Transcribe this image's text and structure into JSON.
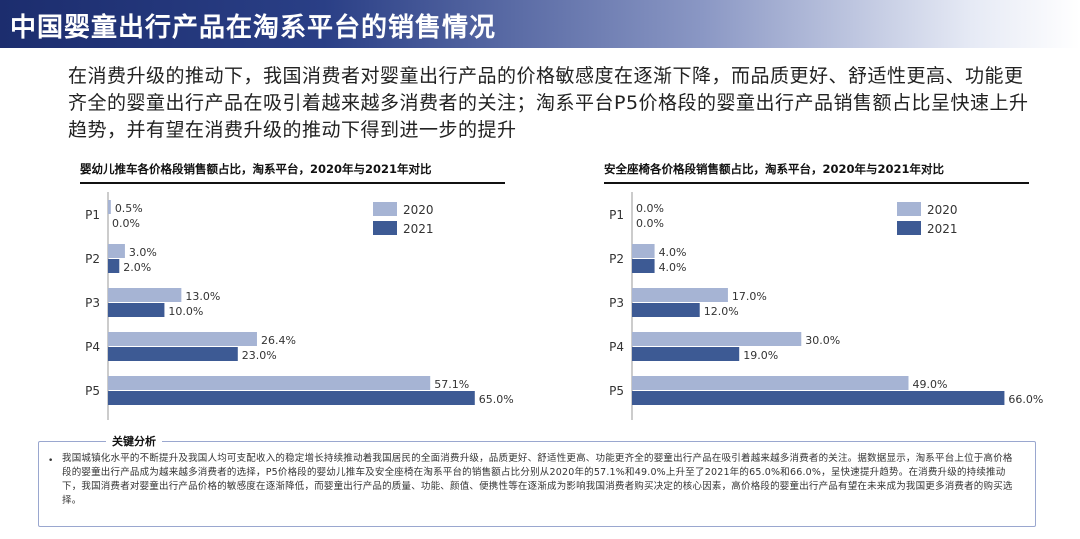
{
  "header": {
    "title": "中国婴童出行产品在淘系平台的销售情况"
  },
  "intro": {
    "text": "在消费升级的推动下，我国消费者对婴童出行产品的价格敏感度在逐渐下降，而品质更好、舒适性更高、功能更齐全的婴童出行产品在吸引着越来越多消费者的关注；淘系平台P5价格段的婴童出行产品销售额占比呈快速上升趋势，并有望在消费升级的推动下得到进一步的提升"
  },
  "colors": {
    "series_2020": "#a6b4d4",
    "series_2021": "#3d5a94",
    "title_bar": "#1c2d6e"
  },
  "chart_data": [
    {
      "type": "bar",
      "orientation": "horizontal",
      "title": "婴幼儿推车各价格段销售额占比，淘系平台，2020年与2021年对比",
      "categories": [
        "P1",
        "P2",
        "P3",
        "P4",
        "P5"
      ],
      "series": [
        {
          "name": "2020",
          "values": [
            0.5,
            3.0,
            13.0,
            26.4,
            57.1
          ],
          "labels": [
            "0.5%",
            "3.0%",
            "13.0%",
            "26.4%",
            "57.1%"
          ]
        },
        {
          "name": "2021",
          "values": [
            0.0,
            2.0,
            10.0,
            23.0,
            65.0
          ],
          "labels": [
            "0.0%",
            "2.0%",
            "10.0%",
            "23.0%",
            "65.0%"
          ]
        }
      ],
      "xlim": [
        0,
        70
      ],
      "legend": "top-right"
    },
    {
      "type": "bar",
      "orientation": "horizontal",
      "title": "安全座椅各价格段销售额占比，淘系平台，2020年与2021年对比",
      "categories": [
        "P1",
        "P2",
        "P3",
        "P4",
        "P5"
      ],
      "series": [
        {
          "name": "2020",
          "values": [
            0.0,
            4.0,
            17.0,
            30.0,
            49.0
          ],
          "labels": [
            "0.0%",
            "4.0%",
            "17.0%",
            "30.0%",
            "49.0%"
          ]
        },
        {
          "name": "2021",
          "values": [
            0.0,
            4.0,
            12.0,
            19.0,
            66.0
          ],
          "labels": [
            "0.0%",
            "4.0%",
            "12.0%",
            "19.0%",
            "66.0%"
          ]
        }
      ],
      "xlim": [
        0,
        70
      ],
      "legend": "top-right"
    }
  ],
  "analysis": {
    "heading": "关键分析",
    "bullet": "•",
    "text": "我国城镇化水平的不断提升及我国人均可支配收入的稳定增长持续推动着我国居民的全面消费升级，品质更好、舒适性更高、功能更齐全的婴童出行产品在吸引着越来越多消费者的关注。据数据显示，淘系平台上位于高价格段的婴童出行产品成为越来越多消费者的选择，P5价格段的婴幼儿推车及安全座椅在淘系平台的销售额占比分别从2020年的57.1%和49.0%上升至了2021年的65.0%和66.0%，呈快速提升趋势。在消费升级的持续推动下，我国消费者对婴童出行产品价格的敏感度在逐渐降低，而婴童出行产品的质量、功能、颜值、便携性等在逐渐成为影响我国消费者购买决定的核心因素，高价格段的婴童出行产品有望在未来成为我国更多消费者的购买选择。"
  }
}
